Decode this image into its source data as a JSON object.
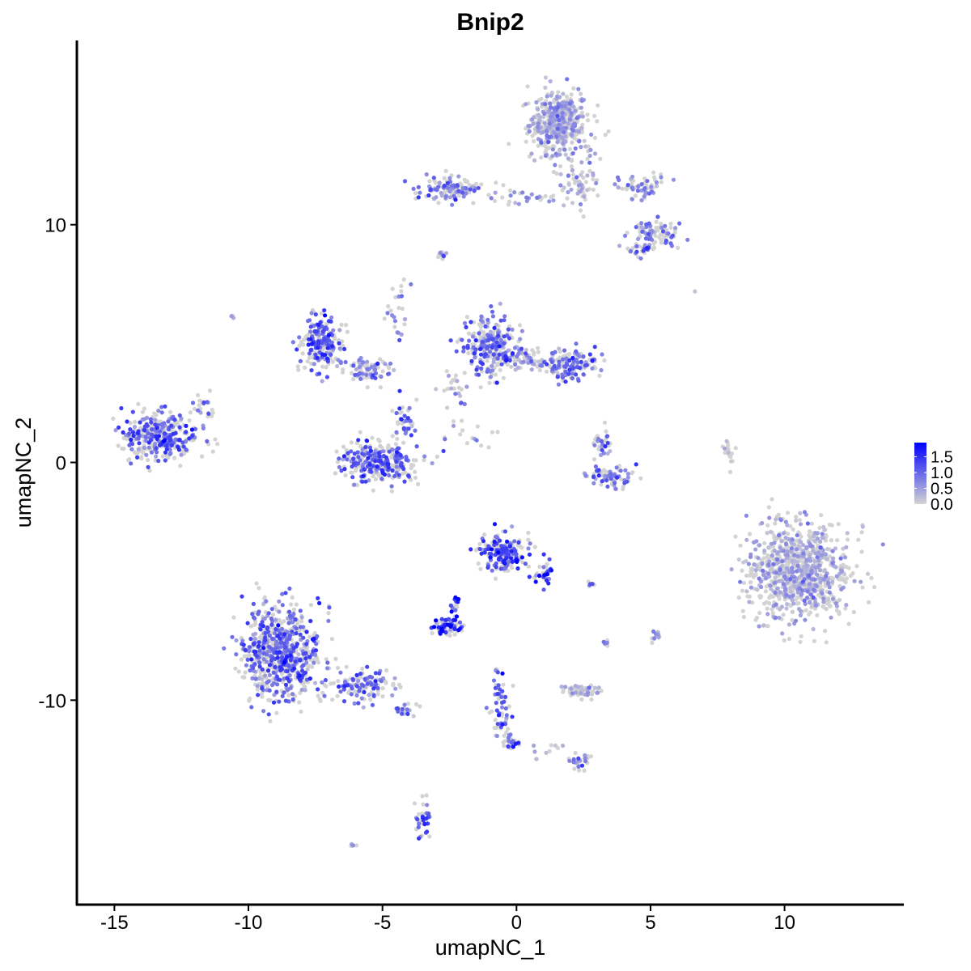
{
  "chart_data": {
    "type": "scatter",
    "title": "Bnip2",
    "xlabel": "umapNC_1",
    "ylabel": "umapNC_2",
    "xlim": [
      -16.4,
      14.45
    ],
    "ylim": [
      -18.6,
      17.75
    ],
    "x_ticks": [
      -15,
      -10,
      -5,
      0,
      5,
      10
    ],
    "x_tick_labels": [
      "-15",
      "-10",
      "-5",
      "0",
      "5",
      "10"
    ],
    "y_ticks": [
      -10,
      0,
      10
    ],
    "y_tick_labels": [
      "-10",
      "0",
      "10"
    ],
    "grid": false,
    "legend": {
      "placement": "right",
      "type": "colorbar",
      "ticks": [
        0.0,
        0.5,
        1.0,
        1.5
      ],
      "tick_labels": [
        "0.0",
        "0.5",
        "1.0",
        "1.5"
      ],
      "range": [
        0,
        1.95
      ]
    },
    "colors": {
      "low": "#D3D3D3",
      "high": "#0000FF"
    },
    "clusters": [
      {
        "center": [
          1.6,
          14.2
        ],
        "spread": [
          0.7,
          0.9
        ],
        "n": 500,
        "mean_expression": 0.4
      },
      {
        "center": [
          2.3,
          11.6
        ],
        "spread": [
          0.5,
          0.6
        ],
        "n": 60,
        "mean_expression": 0.3
      },
      {
        "center": [
          4.6,
          11.6
        ],
        "spread": [
          0.6,
          0.3
        ],
        "n": 60,
        "mean_expression": 0.6
      },
      {
        "center": [
          5.2,
          9.6
        ],
        "spread": [
          0.6,
          0.35
        ],
        "n": 90,
        "mean_expression": 0.7
      },
      {
        "center": [
          4.6,
          9.0
        ],
        "spread": [
          0.3,
          0.2
        ],
        "n": 25,
        "mean_expression": 1.0
      },
      {
        "center": [
          -2.4,
          11.5
        ],
        "spread": [
          0.7,
          0.35
        ],
        "n": 120,
        "mean_expression": 0.8
      },
      {
        "center": [
          0.3,
          11.1
        ],
        "spread": [
          0.9,
          0.2
        ],
        "n": 30,
        "mean_expression": 0.6
      },
      {
        "center": [
          -2.8,
          8.7
        ],
        "spread": [
          0.15,
          0.1
        ],
        "n": 10,
        "mean_expression": 0.5
      },
      {
        "center": [
          -13.3,
          1.1
        ],
        "spread": [
          0.9,
          0.6
        ],
        "n": 350,
        "mean_expression": 1.0
      },
      {
        "center": [
          -11.7,
          2.2
        ],
        "spread": [
          0.25,
          0.5
        ],
        "n": 20,
        "mean_expression": 0.7
      },
      {
        "center": [
          -7.3,
          5.0
        ],
        "spread": [
          0.5,
          0.7
        ],
        "n": 200,
        "mean_expression": 1.0
      },
      {
        "center": [
          -5.6,
          3.9
        ],
        "spread": [
          0.6,
          0.3
        ],
        "n": 80,
        "mean_expression": 0.8
      },
      {
        "center": [
          -5.1,
          0.0
        ],
        "spread": [
          0.9,
          0.5
        ],
        "n": 300,
        "mean_expression": 1.0
      },
      {
        "center": [
          -4.2,
          1.8
        ],
        "spread": [
          0.25,
          0.5
        ],
        "n": 40,
        "mean_expression": 0.9
      },
      {
        "center": [
          -1.0,
          4.9
        ],
        "spread": [
          0.6,
          0.8
        ],
        "n": 250,
        "mean_expression": 0.9
      },
      {
        "center": [
          2.0,
          4.1
        ],
        "spread": [
          0.6,
          0.4
        ],
        "n": 150,
        "mean_expression": 0.9
      },
      {
        "center": [
          0.4,
          4.3
        ],
        "spread": [
          0.6,
          0.3
        ],
        "n": 60,
        "mean_expression": 0.5
      },
      {
        "center": [
          -2.3,
          3.0
        ],
        "spread": [
          0.3,
          0.6
        ],
        "n": 25,
        "mean_expression": 0.4
      },
      {
        "center": [
          3.5,
          -0.6
        ],
        "spread": [
          0.6,
          0.3
        ],
        "n": 80,
        "mean_expression": 0.8
      },
      {
        "center": [
          3.2,
          0.9
        ],
        "spread": [
          0.2,
          0.4
        ],
        "n": 30,
        "mean_expression": 0.9
      },
      {
        "center": [
          10.5,
          -4.6
        ],
        "spread": [
          1.2,
          1.2
        ],
        "n": 900,
        "mean_expression": 0.35
      },
      {
        "center": [
          7.9,
          0.4
        ],
        "spread": [
          0.15,
          0.4
        ],
        "n": 20,
        "mean_expression": 0.1
      },
      {
        "center": [
          -0.5,
          -3.8
        ],
        "spread": [
          0.5,
          0.5
        ],
        "n": 200,
        "mean_expression": 1.1
      },
      {
        "center": [
          1.0,
          -4.7
        ],
        "spread": [
          0.25,
          0.4
        ],
        "n": 30,
        "mean_expression": 1.3
      },
      {
        "center": [
          -2.6,
          -6.9
        ],
        "spread": [
          0.35,
          0.2
        ],
        "n": 70,
        "mean_expression": 1.5
      },
      {
        "center": [
          -2.3,
          -5.9
        ],
        "spread": [
          0.15,
          0.3
        ],
        "n": 15,
        "mean_expression": 1.6
      },
      {
        "center": [
          -8.8,
          -8.0
        ],
        "spread": [
          0.9,
          1.2
        ],
        "n": 700,
        "mean_expression": 0.95
      },
      {
        "center": [
          -5.8,
          -9.4
        ],
        "spread": [
          0.9,
          0.4
        ],
        "n": 120,
        "mean_expression": 0.9
      },
      {
        "center": [
          -4.2,
          -10.4
        ],
        "spread": [
          0.3,
          0.2
        ],
        "n": 20,
        "mean_expression": 0.7
      },
      {
        "center": [
          -0.6,
          -10.4
        ],
        "spread": [
          0.25,
          0.9
        ],
        "n": 60,
        "mean_expression": 1.0
      },
      {
        "center": [
          -0.2,
          -11.8
        ],
        "spread": [
          0.2,
          0.2
        ],
        "n": 25,
        "mean_expression": 1.1
      },
      {
        "center": [
          2.4,
          -9.6
        ],
        "spread": [
          0.45,
          0.15
        ],
        "n": 60,
        "mean_expression": 0.3
      },
      {
        "center": [
          2.4,
          -12.6
        ],
        "spread": [
          0.25,
          0.15
        ],
        "n": 25,
        "mean_expression": 0.8
      },
      {
        "center": [
          -3.5,
          -15.0
        ],
        "spread": [
          0.2,
          0.5
        ],
        "n": 40,
        "mean_expression": 1.1
      },
      {
        "center": [
          -6.1,
          -16.1
        ],
        "spread": [
          0.1,
          0.05
        ],
        "n": 6,
        "mean_expression": 1.0
      },
      {
        "center": [
          5.2,
          -7.3
        ],
        "spread": [
          0.15,
          0.15
        ],
        "n": 12,
        "mean_expression": 0.4
      },
      {
        "center": [
          2.8,
          -5.1
        ],
        "spread": [
          0.1,
          0.05
        ],
        "n": 6,
        "mean_expression": 1.0
      },
      {
        "center": [
          3.4,
          -7.6
        ],
        "spread": [
          0.1,
          0.1
        ],
        "n": 6,
        "mean_expression": 0.5
      },
      {
        "center": [
          -4.4,
          6.0
        ],
        "spread": [
          0.3,
          1.1
        ],
        "n": 25,
        "mean_expression": 0.8
      },
      {
        "center": [
          -10.6,
          6.1
        ],
        "spread": [
          0.05,
          0.05
        ],
        "n": 3,
        "mean_expression": 0.9
      },
      {
        "center": [
          6.7,
          7.1
        ],
        "spread": [
          0.05,
          0.05
        ],
        "n": 1,
        "mean_expression": 0.0
      },
      {
        "center": [
          -1.8,
          1.2
        ],
        "spread": [
          0.6,
          0.4
        ],
        "n": 15,
        "mean_expression": 0.6
      },
      {
        "center": [
          1.6,
          -12.1
        ],
        "spread": [
          0.8,
          0.2
        ],
        "n": 12,
        "mean_expression": 0.3
      }
    ]
  }
}
